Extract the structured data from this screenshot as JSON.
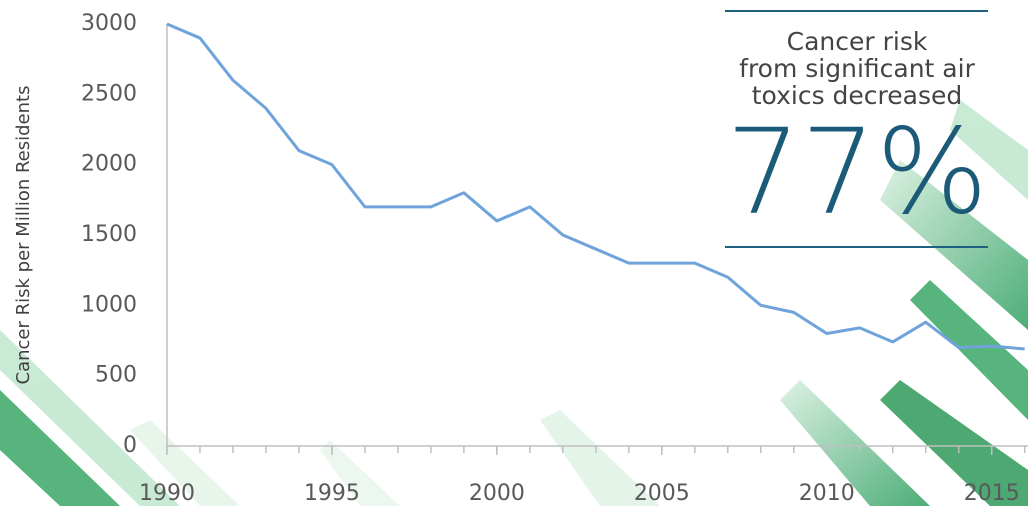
{
  "chart_data": {
    "type": "line",
    "y_label": "Cancer Risk per Million Residents",
    "x": [
      1990,
      1991,
      1992,
      1993,
      1994,
      1995,
      1996,
      1997,
      1998,
      1999,
      2000,
      2001,
      2002,
      2003,
      2004,
      2005,
      2006,
      2007,
      2008,
      2009,
      2010,
      2011,
      2012,
      2013,
      2014,
      2015,
      2016
    ],
    "series": [
      {
        "color": "#6fa3dc",
        "values": [
          3000,
          2900,
          2600,
          2400,
          2100,
          2000,
          1700,
          1700,
          1700,
          1800,
          1600,
          1700,
          1500,
          1400,
          1300,
          1300,
          1300,
          1200,
          1000,
          950,
          800,
          840,
          740,
          880,
          700,
          710,
          690
        ]
      }
    ],
    "xlim": [
      1990,
      2016.1
    ],
    "xticks": [
      1990,
      1995,
      2000,
      2005,
      2010,
      2015
    ],
    "ylim": [
      0,
      3000
    ],
    "yticks": [
      0,
      500,
      1000,
      1500,
      2000,
      2500,
      3000
    ],
    "annotation": {
      "lines": [
        "Cancer risk",
        "from significant air",
        "toxics decreased"
      ],
      "highlight": "77%"
    }
  }
}
